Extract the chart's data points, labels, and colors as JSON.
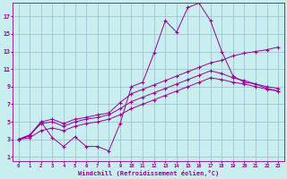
{
  "xlabel": "Windchill (Refroidissement éolien,°C)",
  "bg_color": "#c8eef0",
  "line_color": "#990099",
  "grid_color": "#99bbcc",
  "xlim": [
    -0.5,
    23.5
  ],
  "ylim": [
    0.5,
    18.5
  ],
  "xticks": [
    0,
    1,
    2,
    3,
    4,
    5,
    6,
    7,
    8,
    9,
    10,
    11,
    12,
    13,
    14,
    15,
    16,
    17,
    18,
    19,
    20,
    21,
    22,
    23
  ],
  "yticks": [
    1,
    3,
    5,
    7,
    9,
    11,
    13,
    15,
    17
  ],
  "line1_x": [
    0,
    1,
    2,
    3,
    4,
    5,
    6,
    7,
    8,
    9,
    10,
    11,
    12,
    13,
    14,
    15,
    16,
    17,
    18,
    19,
    20,
    21,
    22,
    23
  ],
  "line1_y": [
    3.0,
    3.4,
    5.0,
    3.2,
    2.2,
    3.3,
    2.2,
    2.2,
    1.7,
    4.8,
    9.0,
    9.5,
    12.8,
    16.5,
    15.2,
    18.0,
    18.5,
    16.5,
    13.0,
    10.2,
    9.5,
    9.3,
    8.8,
    8.5
  ],
  "line2_x": [
    0,
    1,
    2,
    3,
    4,
    5,
    6,
    7,
    8,
    9,
    10,
    11,
    12,
    13,
    14,
    15,
    16,
    17,
    18,
    19,
    20,
    21,
    22,
    23
  ],
  "line2_y": [
    3.0,
    3.5,
    5.0,
    5.3,
    4.8,
    5.3,
    5.5,
    5.8,
    6.0,
    7.2,
    8.2,
    8.7,
    9.2,
    9.7,
    10.2,
    10.7,
    11.2,
    11.7,
    12.0,
    12.5,
    12.8,
    13.0,
    13.2,
    13.5
  ],
  "line3_x": [
    0,
    1,
    2,
    3,
    4,
    5,
    6,
    7,
    8,
    9,
    10,
    11,
    12,
    13,
    14,
    15,
    16,
    17,
    18,
    19,
    20,
    21,
    22,
    23
  ],
  "line3_y": [
    3.0,
    3.5,
    4.8,
    5.0,
    4.5,
    5.0,
    5.3,
    5.5,
    5.8,
    6.5,
    7.3,
    7.8,
    8.3,
    8.8,
    9.3,
    9.8,
    10.3,
    10.8,
    10.5,
    10.0,
    9.7,
    9.3,
    9.0,
    8.8
  ],
  "line4_x": [
    0,
    1,
    2,
    3,
    4,
    5,
    6,
    7,
    8,
    9,
    10,
    11,
    12,
    13,
    14,
    15,
    16,
    17,
    18,
    19,
    20,
    21,
    22,
    23
  ],
  "line4_y": [
    3.0,
    3.2,
    4.0,
    4.3,
    4.0,
    4.5,
    4.8,
    5.0,
    5.3,
    5.8,
    6.5,
    7.0,
    7.5,
    8.0,
    8.5,
    9.0,
    9.5,
    10.0,
    9.8,
    9.5,
    9.3,
    9.0,
    8.7,
    8.5
  ]
}
